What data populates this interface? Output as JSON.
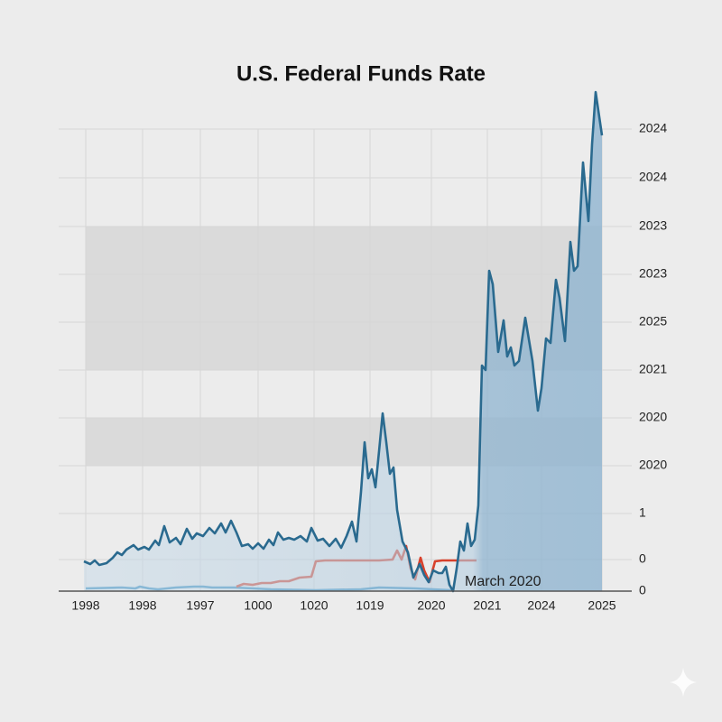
{
  "chart_data": {
    "type": "line",
    "title": "U.S. Federal Funds Rate",
    "annotation": "March 2020",
    "xlim": [
      0,
      572
    ],
    "xticks": [
      {
        "value": 0,
        "label": "1998"
      },
      {
        "value": 63,
        "label": "1998"
      },
      {
        "value": 127,
        "label": "1997"
      },
      {
        "value": 191,
        "label": "1000"
      },
      {
        "value": 253,
        "label": "1020"
      },
      {
        "value": 315,
        "label": "1019"
      },
      {
        "value": 383,
        "label": "2020"
      },
      {
        "value": 445,
        "label": "2021"
      },
      {
        "value": 505,
        "label": "2024"
      },
      {
        "value": 572,
        "label": "2025"
      }
    ],
    "ylim": [
      0,
      512
    ],
    "yticks": [
      {
        "value": 512,
        "label": "2024"
      },
      {
        "value": 458,
        "label": "2024"
      },
      {
        "value": 404,
        "label": "2023"
      },
      {
        "value": 351,
        "label": "2023"
      },
      {
        "value": 298,
        "label": "2025"
      },
      {
        "value": 245,
        "label": "2021"
      },
      {
        "value": 192,
        "label": "2020"
      },
      {
        "value": 139,
        "label": "2020"
      },
      {
        "value": 86,
        "label": "1"
      },
      {
        "value": 35,
        "label": "0"
      },
      0
    ],
    "grid": true,
    "series": [
      {
        "color": "#2a6a8f",
        "area": true,
        "x": [
          -2,
          5,
          10,
          15,
          23,
          30,
          35,
          40,
          45,
          53,
          58,
          65,
          70,
          77,
          81,
          87,
          93,
          100,
          105,
          112,
          118,
          123,
          130,
          137,
          143,
          150,
          155,
          161,
          167,
          173,
          180,
          185,
          191,
          197,
          203,
          208,
          213,
          219,
          225,
          231,
          238,
          245,
          250,
          257,
          263,
          270,
          277,
          283,
          289,
          295,
          300,
          305,
          309,
          313,
          317,
          321,
          325,
          329,
          333,
          337,
          341,
          345,
          351,
          357,
          363,
          370,
          375,
          380,
          385,
          391,
          395,
          399,
          403,
          407,
          411,
          415,
          419,
          423,
          427,
          431,
          435,
          439,
          443,
          447,
          451,
          457,
          463,
          467,
          471,
          475,
          480,
          487,
          495,
          501,
          505,
          510,
          515,
          521,
          525,
          531,
          537,
          541,
          545,
          551,
          557,
          561,
          565,
          572
        ],
        "values": [
          33,
          30,
          34,
          29,
          31,
          37,
          43,
          40,
          46,
          51,
          46,
          49,
          46,
          56,
          51,
          72,
          54,
          59,
          52,
          69,
          58,
          64,
          61,
          70,
          64,
          75,
          65,
          78,
          65,
          50,
          52,
          47,
          53,
          47,
          57,
          51,
          65,
          57,
          59,
          57,
          61,
          55,
          70,
          56,
          58,
          50,
          58,
          48,
          61,
          77,
          55,
          110,
          165,
          125,
          135,
          115,
          155,
          197,
          165,
          130,
          137,
          90,
          55,
          43,
          15,
          30,
          18,
          10,
          23,
          20,
          20,
          27,
          7,
          0,
          25,
          55,
          45,
          75,
          50,
          57,
          95,
          250,
          245,
          355,
          340,
          265,
          300,
          260,
          270,
          250,
          255,
          303,
          255,
          200,
          225,
          280,
          275,
          345,
          325,
          277,
          387,
          355,
          360,
          475,
          410,
          495,
          553,
          505
        ]
      },
      {
        "color": "#d9412b",
        "x": [
          167,
          175,
          185,
          195,
          205,
          215,
          225,
          237,
          250,
          255,
          265,
          285,
          305,
          325,
          340,
          345,
          350,
          355,
          360,
          365,
          371,
          375,
          381,
          387,
          395,
          415,
          433
        ],
        "values": [
          5,
          8,
          7,
          9,
          9,
          11,
          11,
          15,
          16,
          33,
          34,
          34,
          34,
          34,
          35,
          45,
          35,
          50,
          25,
          13,
          37,
          23,
          10,
          33,
          34,
          34,
          34
        ]
      },
      {
        "color": "#3b8fc0",
        "x": [
          0,
          40,
          55,
          60,
          70,
          80,
          100,
          120,
          130,
          140,
          165,
          205,
          255,
          305,
          325,
          365,
          405
        ],
        "values": [
          3,
          4,
          3,
          5,
          3,
          2,
          4,
          5,
          5,
          4,
          4,
          2,
          1,
          2,
          4,
          3,
          1
        ]
      }
    ]
  }
}
